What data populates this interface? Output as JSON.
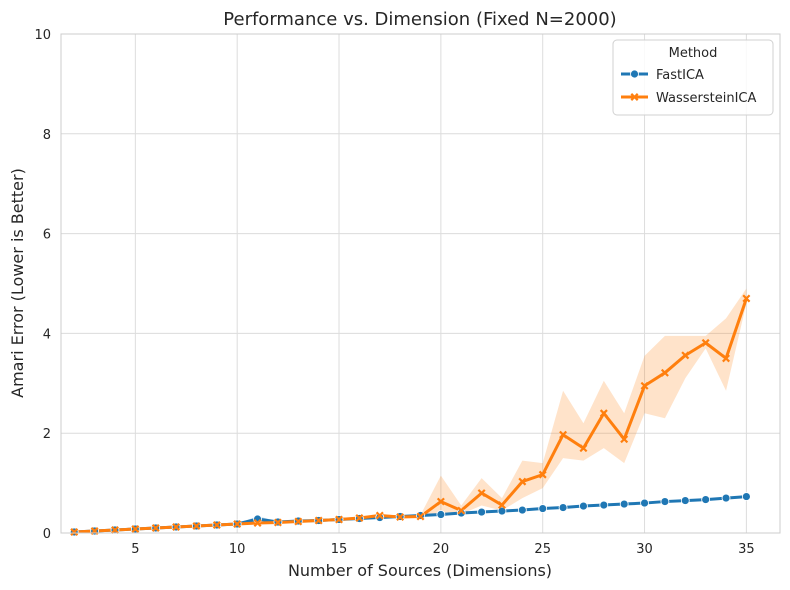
{
  "chart_data": {
    "type": "line",
    "title": "Performance vs. Dimension (Fixed N=2000)",
    "xlabel": "Number of Sources (Dimensions)",
    "ylabel": "Amari Error (Lower is Better)",
    "xlim": [
      1.35,
      36.65
    ],
    "ylim": [
      0,
      10
    ],
    "xticks": [
      5,
      10,
      15,
      20,
      25,
      30,
      35
    ],
    "yticks": [
      0,
      2,
      4,
      6,
      8,
      10
    ],
    "grid": true,
    "legend": {
      "title": "Method",
      "position": "top-right"
    },
    "x": [
      2,
      3,
      4,
      5,
      6,
      7,
      8,
      9,
      10,
      11,
      12,
      13,
      14,
      15,
      16,
      17,
      18,
      19,
      20,
      21,
      22,
      23,
      24,
      25,
      26,
      27,
      28,
      29,
      30,
      31,
      32,
      33,
      34,
      35
    ],
    "series": [
      {
        "name": "FastICA",
        "color": "#1f77b4",
        "marker": "circle",
        "values": [
          0.02,
          0.04,
          0.06,
          0.08,
          0.1,
          0.12,
          0.14,
          0.16,
          0.18,
          0.28,
          0.22,
          0.24,
          0.25,
          0.27,
          0.29,
          0.31,
          0.33,
          0.35,
          0.37,
          0.4,
          0.42,
          0.44,
          0.46,
          0.49,
          0.51,
          0.54,
          0.56,
          0.58,
          0.6,
          0.63,
          0.65,
          0.67,
          0.7,
          0.73
        ],
        "ci_low": [
          0.02,
          0.04,
          0.06,
          0.08,
          0.1,
          0.12,
          0.14,
          0.16,
          0.18,
          0.22,
          0.21,
          0.23,
          0.24,
          0.26,
          0.28,
          0.3,
          0.32,
          0.34,
          0.36,
          0.39,
          0.41,
          0.43,
          0.45,
          0.48,
          0.5,
          0.53,
          0.55,
          0.57,
          0.59,
          0.62,
          0.64,
          0.66,
          0.69,
          0.71
        ],
        "ci_high": [
          0.02,
          0.04,
          0.06,
          0.08,
          0.1,
          0.12,
          0.14,
          0.16,
          0.18,
          0.34,
          0.23,
          0.25,
          0.26,
          0.28,
          0.3,
          0.32,
          0.34,
          0.36,
          0.38,
          0.41,
          0.43,
          0.45,
          0.47,
          0.5,
          0.52,
          0.55,
          0.57,
          0.59,
          0.61,
          0.64,
          0.66,
          0.68,
          0.71,
          0.75
        ]
      },
      {
        "name": "WassersteinICA",
        "color": "#ff7f0e",
        "marker": "x",
        "values": [
          0.02,
          0.04,
          0.06,
          0.08,
          0.1,
          0.12,
          0.14,
          0.16,
          0.18,
          0.2,
          0.21,
          0.23,
          0.25,
          0.27,
          0.3,
          0.35,
          0.32,
          0.33,
          0.63,
          0.45,
          0.8,
          0.56,
          1.03,
          1.17,
          1.97,
          1.7,
          2.4,
          1.88,
          2.95,
          3.21,
          3.56,
          3.81,
          3.5,
          4.7
        ],
        "ci_low": [
          0.02,
          0.04,
          0.06,
          0.08,
          0.1,
          0.12,
          0.14,
          0.16,
          0.18,
          0.19,
          0.2,
          0.22,
          0.24,
          0.26,
          0.28,
          0.31,
          0.3,
          0.31,
          0.4,
          0.38,
          0.55,
          0.45,
          0.7,
          0.9,
          1.5,
          1.45,
          1.7,
          1.4,
          2.4,
          2.3,
          3.1,
          3.7,
          2.85,
          4.6
        ],
        "ci_high": [
          0.02,
          0.04,
          0.06,
          0.08,
          0.1,
          0.12,
          0.14,
          0.16,
          0.18,
          0.21,
          0.22,
          0.24,
          0.26,
          0.28,
          0.32,
          0.39,
          0.34,
          0.36,
          1.15,
          0.55,
          1.1,
          0.7,
          1.45,
          1.4,
          2.85,
          2.2,
          3.05,
          2.4,
          3.55,
          3.95,
          3.95,
          3.95,
          4.3,
          4.9
        ]
      }
    ]
  }
}
